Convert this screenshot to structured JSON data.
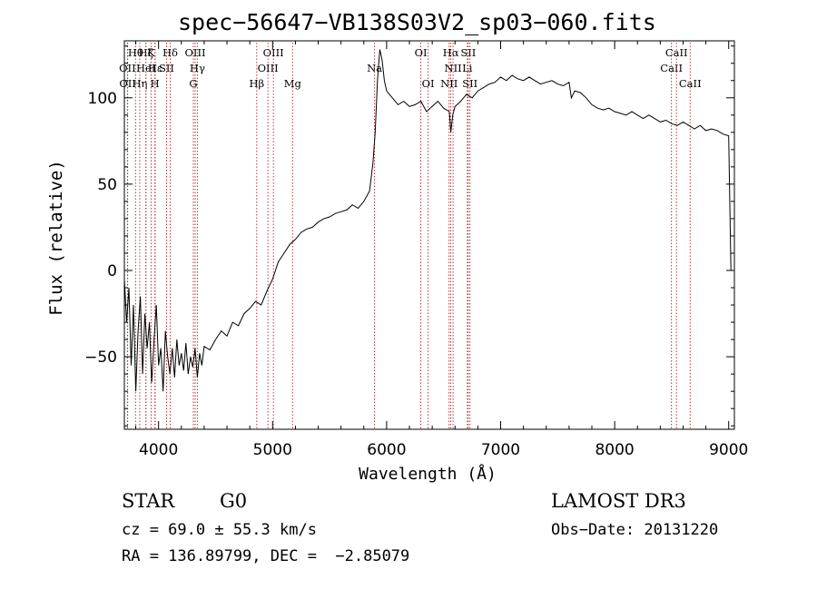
{
  "chart_data": {
    "type": "line",
    "title": "spec−56647−VB138S03V2_sp03−060.fits",
    "xlabel": "Wavelength (Å)",
    "ylabel": "Flux (relative)",
    "xlim": [
      3700,
      9050
    ],
    "ylim": [
      -92,
      133
    ],
    "xticks": [
      4000,
      5000,
      6000,
      7000,
      8000,
      9000
    ],
    "yticks": [
      -50,
      0,
      50,
      100
    ],
    "line_color": "#000000",
    "marker_color": "#b22222",
    "series": [
      {
        "name": "flux",
        "points": [
          [
            3700,
            -5
          ],
          [
            3720,
            -30
          ],
          [
            3740,
            -10
          ],
          [
            3760,
            -55
          ],
          [
            3780,
            -20
          ],
          [
            3800,
            -70
          ],
          [
            3820,
            -35
          ],
          [
            3840,
            -15
          ],
          [
            3860,
            -60
          ],
          [
            3880,
            -25
          ],
          [
            3900,
            -45
          ],
          [
            3920,
            -30
          ],
          [
            3940,
            -65
          ],
          [
            3960,
            -40
          ],
          [
            3980,
            -20
          ],
          [
            4000,
            -55
          ],
          [
            4020,
            -45
          ],
          [
            4040,
            -70
          ],
          [
            4060,
            -35
          ],
          [
            4080,
            -50
          ],
          [
            4100,
            -60
          ],
          [
            4120,
            -45
          ],
          [
            4140,
            -62
          ],
          [
            4160,
            -40
          ],
          [
            4180,
            -55
          ],
          [
            4200,
            -48
          ],
          [
            4220,
            -58
          ],
          [
            4240,
            -42
          ],
          [
            4260,
            -60
          ],
          [
            4280,
            -50
          ],
          [
            4300,
            -56
          ],
          [
            4320,
            -45
          ],
          [
            4340,
            -62
          ],
          [
            4360,
            -48
          ],
          [
            4380,
            -55
          ],
          [
            4400,
            -44
          ],
          [
            4450,
            -46
          ],
          [
            4500,
            -40
          ],
          [
            4550,
            -35
          ],
          [
            4600,
            -38
          ],
          [
            4650,
            -30
          ],
          [
            4700,
            -32
          ],
          [
            4750,
            -25
          ],
          [
            4800,
            -22
          ],
          [
            4850,
            -18
          ],
          [
            4900,
            -20
          ],
          [
            4950,
            -12
          ],
          [
            5000,
            -5
          ],
          [
            5050,
            5
          ],
          [
            5100,
            10
          ],
          [
            5150,
            15
          ],
          [
            5200,
            18
          ],
          [
            5250,
            22
          ],
          [
            5300,
            24
          ],
          [
            5350,
            25
          ],
          [
            5400,
            28
          ],
          [
            5450,
            30
          ],
          [
            5500,
            31
          ],
          [
            5550,
            33
          ],
          [
            5600,
            34
          ],
          [
            5650,
            35
          ],
          [
            5700,
            38
          ],
          [
            5750,
            36
          ],
          [
            5800,
            40
          ],
          [
            5850,
            46
          ],
          [
            5880,
            62
          ],
          [
            5900,
            80
          ],
          [
            5920,
            110
          ],
          [
            5940,
            128
          ],
          [
            5960,
            122
          ],
          [
            5980,
            110
          ],
          [
            6000,
            104
          ],
          [
            6050,
            100
          ],
          [
            6100,
            96
          ],
          [
            6150,
            98
          ],
          [
            6200,
            95
          ],
          [
            6250,
            96
          ],
          [
            6300,
            98
          ],
          [
            6350,
            92
          ],
          [
            6400,
            95
          ],
          [
            6450,
            98
          ],
          [
            6500,
            94
          ],
          [
            6550,
            92
          ],
          [
            6563,
            80
          ],
          [
            6580,
            90
          ],
          [
            6600,
            95
          ],
          [
            6650,
            98
          ],
          [
            6700,
            102
          ],
          [
            6750,
            100
          ],
          [
            6800,
            104
          ],
          [
            6850,
            106
          ],
          [
            6900,
            108
          ],
          [
            6950,
            109
          ],
          [
            7000,
            112
          ],
          [
            7050,
            110
          ],
          [
            7100,
            113
          ],
          [
            7150,
            111
          ],
          [
            7200,
            110
          ],
          [
            7250,
            112
          ],
          [
            7300,
            110
          ],
          [
            7350,
            108
          ],
          [
            7400,
            109
          ],
          [
            7450,
            110
          ],
          [
            7500,
            108
          ],
          [
            7550,
            107
          ],
          [
            7600,
            109
          ],
          [
            7620,
            100
          ],
          [
            7650,
            104
          ],
          [
            7700,
            103
          ],
          [
            7750,
            100
          ],
          [
            7800,
            96
          ],
          [
            7850,
            94
          ],
          [
            7900,
            93
          ],
          [
            7950,
            94
          ],
          [
            8000,
            92
          ],
          [
            8050,
            91
          ],
          [
            8100,
            90
          ],
          [
            8150,
            92
          ],
          [
            8200,
            90
          ],
          [
            8250,
            88
          ],
          [
            8300,
            90
          ],
          [
            8350,
            88
          ],
          [
            8400,
            86
          ],
          [
            8450,
            87
          ],
          [
            8500,
            85
          ],
          [
            8550,
            84
          ],
          [
            8600,
            86
          ],
          [
            8650,
            84
          ],
          [
            8700,
            82
          ],
          [
            8750,
            84
          ],
          [
            8800,
            81
          ],
          [
            8850,
            82
          ],
          [
            8900,
            81
          ],
          [
            8950,
            79
          ],
          [
            9000,
            78
          ],
          [
            9020,
            0
          ]
        ]
      }
    ],
    "line_markers": [
      {
        "name": "OII",
        "wavelength": 3727,
        "row": 2
      },
      {
        "name": "OII",
        "wavelength": 3729,
        "row": 3
      },
      {
        "name": "Hθ",
        "wavelength": 3798,
        "row": 1
      },
      {
        "name": "Hη",
        "wavelength": 3835,
        "row": 3
      },
      {
        "name": "Hζ",
        "wavelength": 3889,
        "row": 1
      },
      {
        "name": "HeI",
        "wavelength": 3889,
        "row": 2
      },
      {
        "name": "K",
        "wavelength": 3934,
        "row": 1
      },
      {
        "name": "H",
        "wavelength": 3968,
        "row": 3
      },
      {
        "name": "Hε",
        "wavelength": 3970,
        "row": 2
      },
      {
        "name": "SII",
        "wavelength": 4070,
        "row": 2
      },
      {
        "name": "Hδ",
        "wavelength": 4102,
        "row": 1
      },
      {
        "name": "G",
        "wavelength": 4305,
        "row": 3
      },
      {
        "name": "OIII",
        "wavelength": 4321,
        "row": 1
      },
      {
        "name": "Hγ",
        "wavelength": 4340,
        "row": 2
      },
      {
        "name": "Hβ",
        "wavelength": 4861,
        "row": 3
      },
      {
        "name": "OIII",
        "wavelength": 4959,
        "row": 2
      },
      {
        "name": "OIII",
        "wavelength": 5007,
        "row": 1
      },
      {
        "name": "Mg",
        "wavelength": 5175,
        "row": 3
      },
      {
        "name": "Na",
        "wavelength": 5894,
        "row": 2
      },
      {
        "name": "OI",
        "wavelength": 6300,
        "row": 1
      },
      {
        "name": "OI",
        "wavelength": 6364,
        "row": 3
      },
      {
        "name": "NII",
        "wavelength": 6548,
        "row": 3
      },
      {
        "name": "Hα",
        "wavelength": 6563,
        "row": 1
      },
      {
        "name": "NII",
        "wavelength": 6583,
        "row": 2
      },
      {
        "name": "SII",
        "wavelength": 6716,
        "row": 1
      },
      {
        "name": "Li",
        "wavelength": 6708,
        "row": 2
      },
      {
        "name": "SII",
        "wavelength": 6731,
        "row": 3
      },
      {
        "name": "CaII",
        "wavelength": 8498,
        "row": 2
      },
      {
        "name": "CaII",
        "wavelength": 8542,
        "row": 1
      },
      {
        "name": "CaII",
        "wavelength": 8662,
        "row": 3
      }
    ]
  },
  "info": {
    "class": "STAR",
    "subclass": "G0",
    "survey": "LAMOST DR3",
    "redshift": "cz = 69.0 ± 55.3 km/s",
    "obsdate": "Obs−Date: 20131220",
    "coords": "RA = 136.89799, DEC =  −2.85079"
  }
}
